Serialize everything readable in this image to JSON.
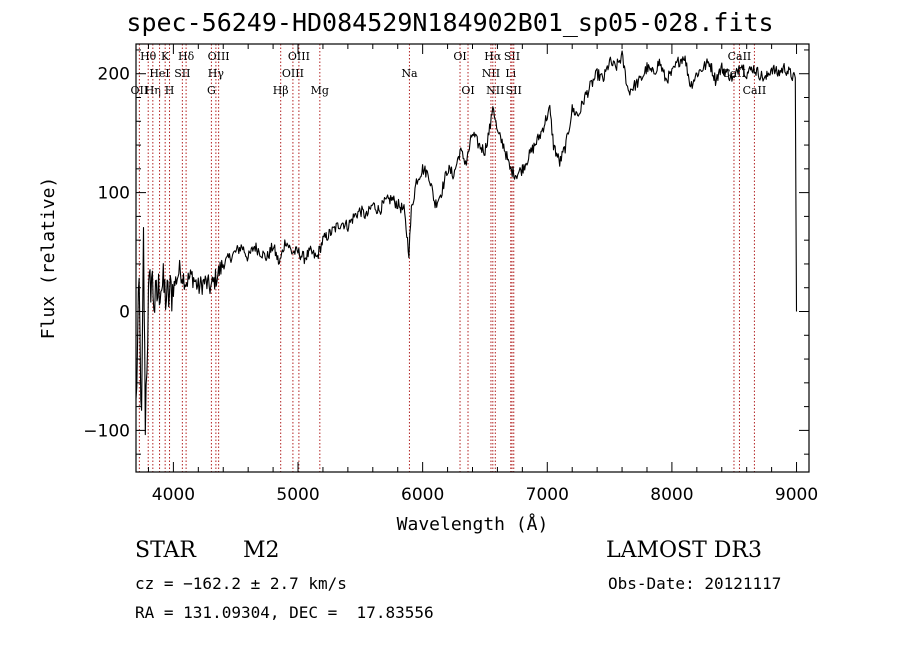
{
  "chart_data": {
    "type": "line",
    "title": "spec-56249-HD084529N184902B01_sp05-028.fits",
    "xlabel": "Wavelength (Å)",
    "ylabel": "Flux (relative)",
    "xlim": [
      3700,
      9100
    ],
    "ylim": [
      -135,
      225
    ],
    "xticks": [
      4000,
      5000,
      6000,
      7000,
      8000,
      9000
    ],
    "yticks": [
      -100,
      0,
      100,
      200
    ],
    "xtick_labels": [
      "4000",
      "5000",
      "6000",
      "7000",
      "8000",
      "9000"
    ],
    "ytick_labels": [
      "−100",
      "0",
      "100",
      "200"
    ],
    "grid": false,
    "series": [
      {
        "name": "flux",
        "x": [
          3700,
          3725,
          3745,
          3760,
          3775,
          3800,
          3825,
          3850,
          3900,
          3950,
          4000,
          4050,
          4100,
          4150,
          4200,
          4250,
          4300,
          4350,
          4400,
          4450,
          4500,
          4550,
          4600,
          4650,
          4700,
          4750,
          4800,
          4850,
          4900,
          4950,
          5000,
          5050,
          5100,
          5150,
          5200,
          5250,
          5300,
          5350,
          5400,
          5450,
          5500,
          5550,
          5600,
          5650,
          5700,
          5750,
          5800,
          5850,
          5890,
          5910,
          5950,
          6000,
          6050,
          6100,
          6150,
          6200,
          6250,
          6300,
          6350,
          6400,
          6450,
          6500,
          6550,
          6563,
          6600,
          6650,
          6700,
          6750,
          6800,
          6850,
          6900,
          6950,
          7000,
          7020,
          7050,
          7100,
          7150,
          7200,
          7250,
          7300,
          7350,
          7400,
          7450,
          7500,
          7550,
          7600,
          7650,
          7700,
          7750,
          7800,
          7850,
          7900,
          7950,
          8000,
          8050,
          8100,
          8150,
          8200,
          8250,
          8300,
          8350,
          8400,
          8450,
          8500,
          8550,
          8600,
          8650,
          8700,
          8750,
          8800,
          8850,
          8900,
          8950,
          8990,
          9000
        ],
        "y": [
          -80,
          20,
          -100,
          60,
          -90,
          10,
          30,
          5,
          25,
          10,
          20,
          35,
          25,
          30,
          20,
          25,
          20,
          30,
          40,
          45,
          50,
          55,
          45,
          55,
          50,
          45,
          55,
          40,
          60,
          50,
          50,
          45,
          50,
          45,
          60,
          65,
          70,
          75,
          72,
          80,
          85,
          80,
          90,
          85,
          92,
          95,
          90,
          85,
          50,
          85,
          110,
          120,
          115,
          90,
          100,
          120,
          115,
          135,
          125,
          150,
          140,
          135,
          160,
          175,
          150,
          140,
          120,
          115,
          120,
          130,
          140,
          150,
          165,
          170,
          140,
          125,
          140,
          170,
          165,
          180,
          190,
          200,
          195,
          210,
          205,
          215,
          185,
          190,
          195,
          205,
          200,
          210,
          195,
          200,
          210,
          215,
          190,
          200,
          205,
          210,
          195,
          205,
          200,
          195,
          210,
          200,
          205,
          200,
          195,
          205,
          200,
          205,
          200,
          195,
          0
        ]
      }
    ],
    "line_markers": [
      {
        "label": "OII",
        "x": 3727,
        "row": 3
      },
      {
        "label": "Hθ",
        "x": 3798,
        "row": 1
      },
      {
        "label": "Hη",
        "x": 3835,
        "row": 3
      },
      {
        "label": "HeI",
        "x": 3889,
        "row": 2
      },
      {
        "label": "K",
        "x": 3934,
        "row": 1
      },
      {
        "label": "H",
        "x": 3969,
        "row": 3
      },
      {
        "label": "SII",
        "x": 4072,
        "row": 2
      },
      {
        "label": "Hδ",
        "x": 4102,
        "row": 1
      },
      {
        "label": "G",
        "x": 4305,
        "row": 3
      },
      {
        "label": "Hγ",
        "x": 4341,
        "row": 2
      },
      {
        "label": "OIII",
        "x": 4363,
        "row": 1
      },
      {
        "label": "Hβ",
        "x": 4861,
        "row": 3
      },
      {
        "label": "OIII",
        "x": 4959,
        "row": 2
      },
      {
        "label": "OIII",
        "x": 5007,
        "row": 1
      },
      {
        "label": "Mg",
        "x": 5175,
        "row": 3
      },
      {
        "label": "Na",
        "x": 5894,
        "row": 2
      },
      {
        "label": "OI",
        "x": 6300,
        "row": 1
      },
      {
        "label": "OI",
        "x": 6364,
        "row": 3
      },
      {
        "label": "NII",
        "x": 6548,
        "row": 2
      },
      {
        "label": "Hα",
        "x": 6563,
        "row": 1
      },
      {
        "label": "NII",
        "x": 6583,
        "row": 3
      },
      {
        "label": "Li",
        "x": 6707,
        "row": 2
      },
      {
        "label": "SII",
        "x": 6717,
        "row": 1
      },
      {
        "label": "SII",
        "x": 6731,
        "row": 3
      },
      {
        "label": "CaII",
        "x": 8498,
        "row": 2
      },
      {
        "label": "CaII",
        "x": 8542,
        "row": 1
      },
      {
        "label": "CaII",
        "x": 8662,
        "row": 3
      }
    ],
    "marker_color": "#b22222"
  },
  "info": {
    "object_class": "STAR",
    "subclass": "M2",
    "survey": "LAMOST DR3",
    "redshift": "cz = −162.2 ± 2.7 km/s",
    "obs_date": "Obs-Date: 20121117",
    "coords": "RA = 131.09304, DEC =  17.83556"
  }
}
